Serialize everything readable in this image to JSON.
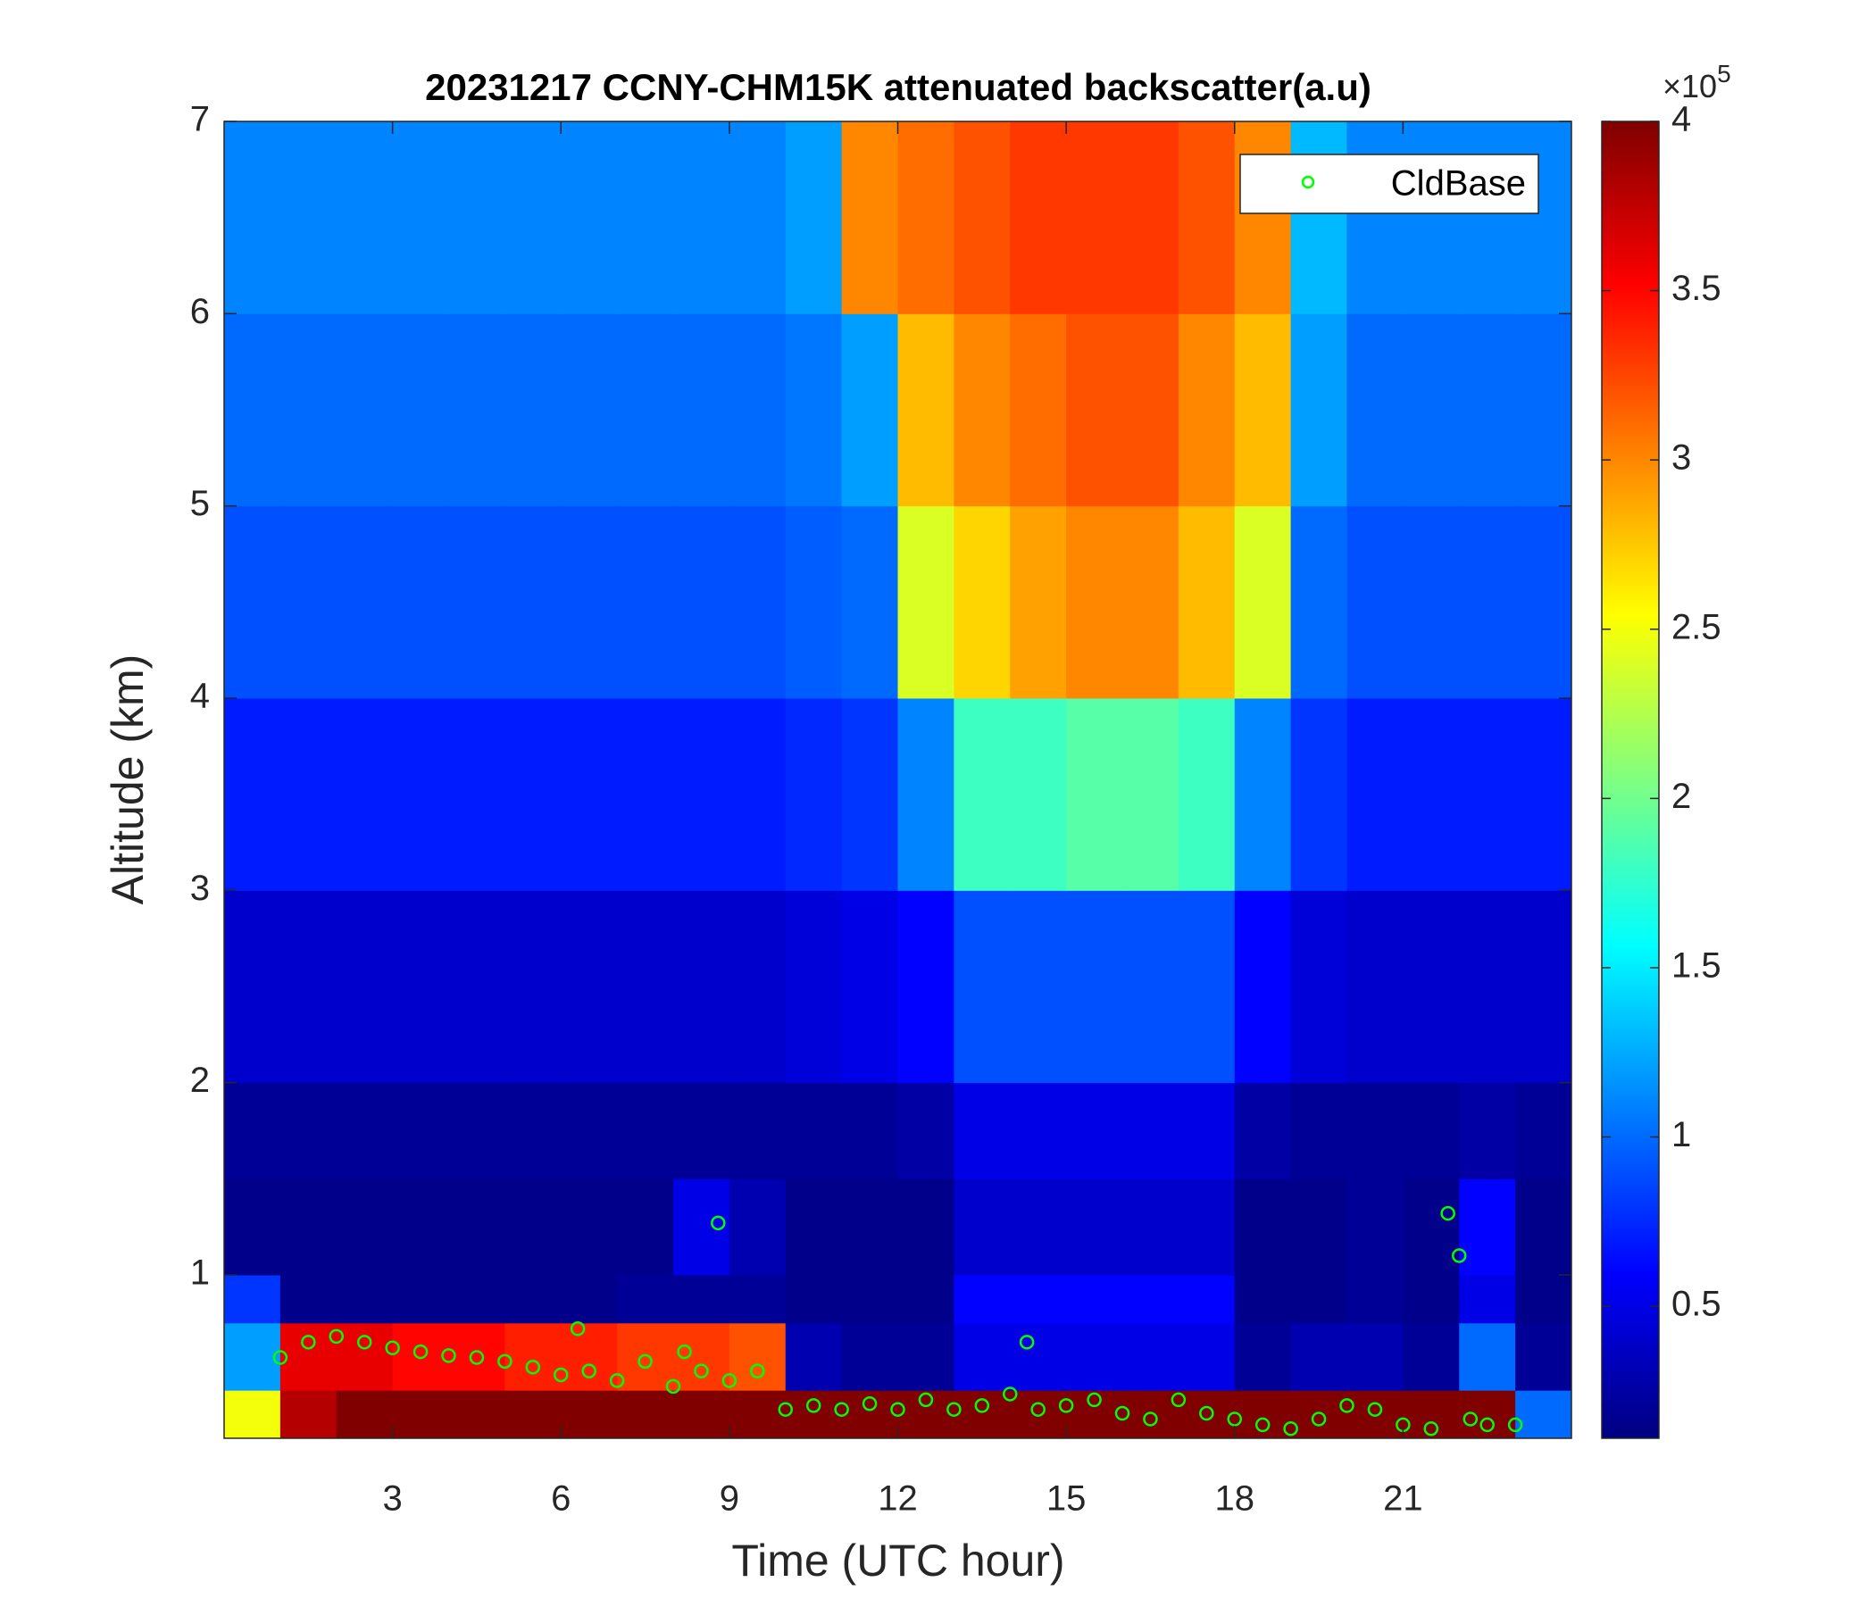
{
  "chart_data": {
    "type": "heatmap",
    "title": "20231217 CCNY-CHM15K attenuated backscatter(a.u)",
    "x_label": "Time (UTC hour)",
    "y_label": "Altitude (km)",
    "xlim": [
      0,
      24
    ],
    "xticks": [
      3,
      6,
      9,
      12,
      15,
      18,
      21
    ],
    "ylim": [
      0.15,
      7
    ],
    "yticks": [
      1,
      2,
      3,
      4,
      5,
      6,
      7
    ],
    "colormap": "jet",
    "clim": [
      0.11,
      4
    ],
    "cticks": [
      0.5,
      1,
      1.5,
      2,
      2.5,
      3,
      3.5,
      4
    ],
    "colorbar_multiplier": {
      "base": "×10",
      "exponent": "5"
    },
    "legend": "upper right",
    "x_edges": [
      0,
      1,
      2,
      3,
      4,
      5,
      6,
      7,
      8,
      9,
      10,
      11,
      12,
      13,
      14,
      15,
      16,
      17,
      18,
      19,
      20,
      21,
      22,
      23,
      24
    ],
    "y_edges": [
      0.15,
      0.4,
      0.75,
      1,
      1.5,
      2,
      3,
      4,
      5,
      6,
      7
    ],
    "z": [
      [
        2.5,
        3.8,
        4,
        4,
        4,
        4,
        4,
        4,
        4,
        4,
        4,
        4,
        4,
        4,
        4,
        4,
        4,
        4,
        4,
        4,
        4,
        4,
        4,
        1.0
      ],
      [
        1.2,
        3.6,
        3.6,
        3.5,
        3.5,
        3.4,
        3.4,
        3.3,
        3.3,
        3.2,
        0.3,
        0.2,
        0.2,
        0.5,
        0.5,
        0.5,
        0.5,
        0.5,
        0.2,
        0.3,
        0.3,
        0.2,
        1.0,
        0.2
      ],
      [
        0.8,
        0.15,
        0.15,
        0.15,
        0.15,
        0.15,
        0.15,
        0.2,
        0.2,
        0.2,
        0.15,
        0.15,
        0.15,
        0.6,
        0.6,
        0.6,
        0.6,
        0.6,
        0.15,
        0.15,
        0.2,
        0.15,
        0.5,
        0.15
      ],
      [
        0.15,
        0.15,
        0.15,
        0.15,
        0.15,
        0.15,
        0.15,
        0.15,
        0.5,
        0.3,
        0.15,
        0.15,
        0.15,
        0.4,
        0.4,
        0.4,
        0.4,
        0.4,
        0.15,
        0.15,
        0.2,
        0.15,
        0.6,
        0.15
      ],
      [
        0.2,
        0.2,
        0.2,
        0.2,
        0.2,
        0.2,
        0.2,
        0.2,
        0.2,
        0.2,
        0.2,
        0.2,
        0.25,
        0.5,
        0.5,
        0.5,
        0.5,
        0.5,
        0.25,
        0.2,
        0.2,
        0.2,
        0.25,
        0.2
      ],
      [
        0.4,
        0.4,
        0.4,
        0.4,
        0.4,
        0.4,
        0.4,
        0.4,
        0.4,
        0.4,
        0.45,
        0.5,
        0.6,
        0.9,
        0.9,
        0.9,
        0.9,
        0.9,
        0.6,
        0.45,
        0.4,
        0.4,
        0.4,
        0.4
      ],
      [
        0.7,
        0.7,
        0.7,
        0.7,
        0.7,
        0.7,
        0.7,
        0.7,
        0.7,
        0.7,
        0.75,
        0.8,
        1.1,
        1.8,
        1.8,
        1.9,
        1.9,
        1.8,
        1.1,
        0.8,
        0.7,
        0.7,
        0.7,
        0.7
      ],
      [
        0.9,
        0.9,
        0.9,
        0.9,
        0.9,
        0.9,
        0.9,
        0.9,
        0.9,
        0.9,
        0.95,
        1.0,
        2.4,
        2.7,
        2.9,
        3.0,
        3.0,
        2.8,
        2.4,
        1.0,
        0.9,
        0.9,
        0.9,
        0.9
      ],
      [
        1.0,
        1.0,
        1.0,
        1.0,
        1.0,
        1.0,
        1.0,
        1.0,
        1.0,
        1.0,
        1.05,
        1.2,
        2.8,
        3.0,
        3.1,
        3.2,
        3.2,
        3.0,
        2.8,
        1.2,
        1.0,
        1.0,
        1.0,
        1.0
      ],
      [
        1.1,
        1.1,
        1.1,
        1.1,
        1.1,
        1.1,
        1.1,
        1.1,
        1.1,
        1.1,
        1.2,
        3.0,
        3.1,
        3.2,
        3.3,
        3.3,
        3.3,
        3.2,
        3.0,
        1.3,
        1.1,
        1.1,
        1.1,
        1.1
      ]
    ],
    "series": [
      {
        "name": "CldBase",
        "type": "scatter",
        "color": "#00ff00",
        "x": [
          1.0,
          1.5,
          2,
          2.5,
          3,
          3.5,
          4,
          4.5,
          5,
          5.5,
          6,
          6.3,
          6.5,
          7,
          7.5,
          8,
          8.2,
          8.5,
          8.8,
          9,
          9.5,
          10,
          10.5,
          11,
          11.5,
          12,
          12.5,
          13,
          13.5,
          14,
          14.3,
          14.5,
          15,
          15.5,
          16,
          16.5,
          17,
          17.5,
          18,
          18.5,
          19,
          19.5,
          20,
          20.5,
          21,
          21.5,
          21.8,
          22,
          22.2,
          22.5,
          23
        ],
        "values": [
          0.57,
          0.65,
          0.68,
          0.65,
          0.62,
          0.6,
          0.58,
          0.57,
          0.55,
          0.52,
          0.48,
          0.72,
          0.5,
          0.45,
          0.55,
          0.42,
          0.6,
          0.5,
          1.27,
          0.45,
          0.5,
          0.3,
          0.32,
          0.3,
          0.33,
          0.3,
          0.35,
          0.3,
          0.32,
          0.38,
          0.65,
          0.3,
          0.32,
          0.35,
          0.28,
          0.25,
          0.35,
          0.28,
          0.25,
          0.22,
          0.2,
          0.25,
          0.32,
          0.3,
          0.22,
          0.2,
          1.32,
          1.1,
          0.25,
          0.22,
          0.22
        ]
      }
    ]
  }
}
